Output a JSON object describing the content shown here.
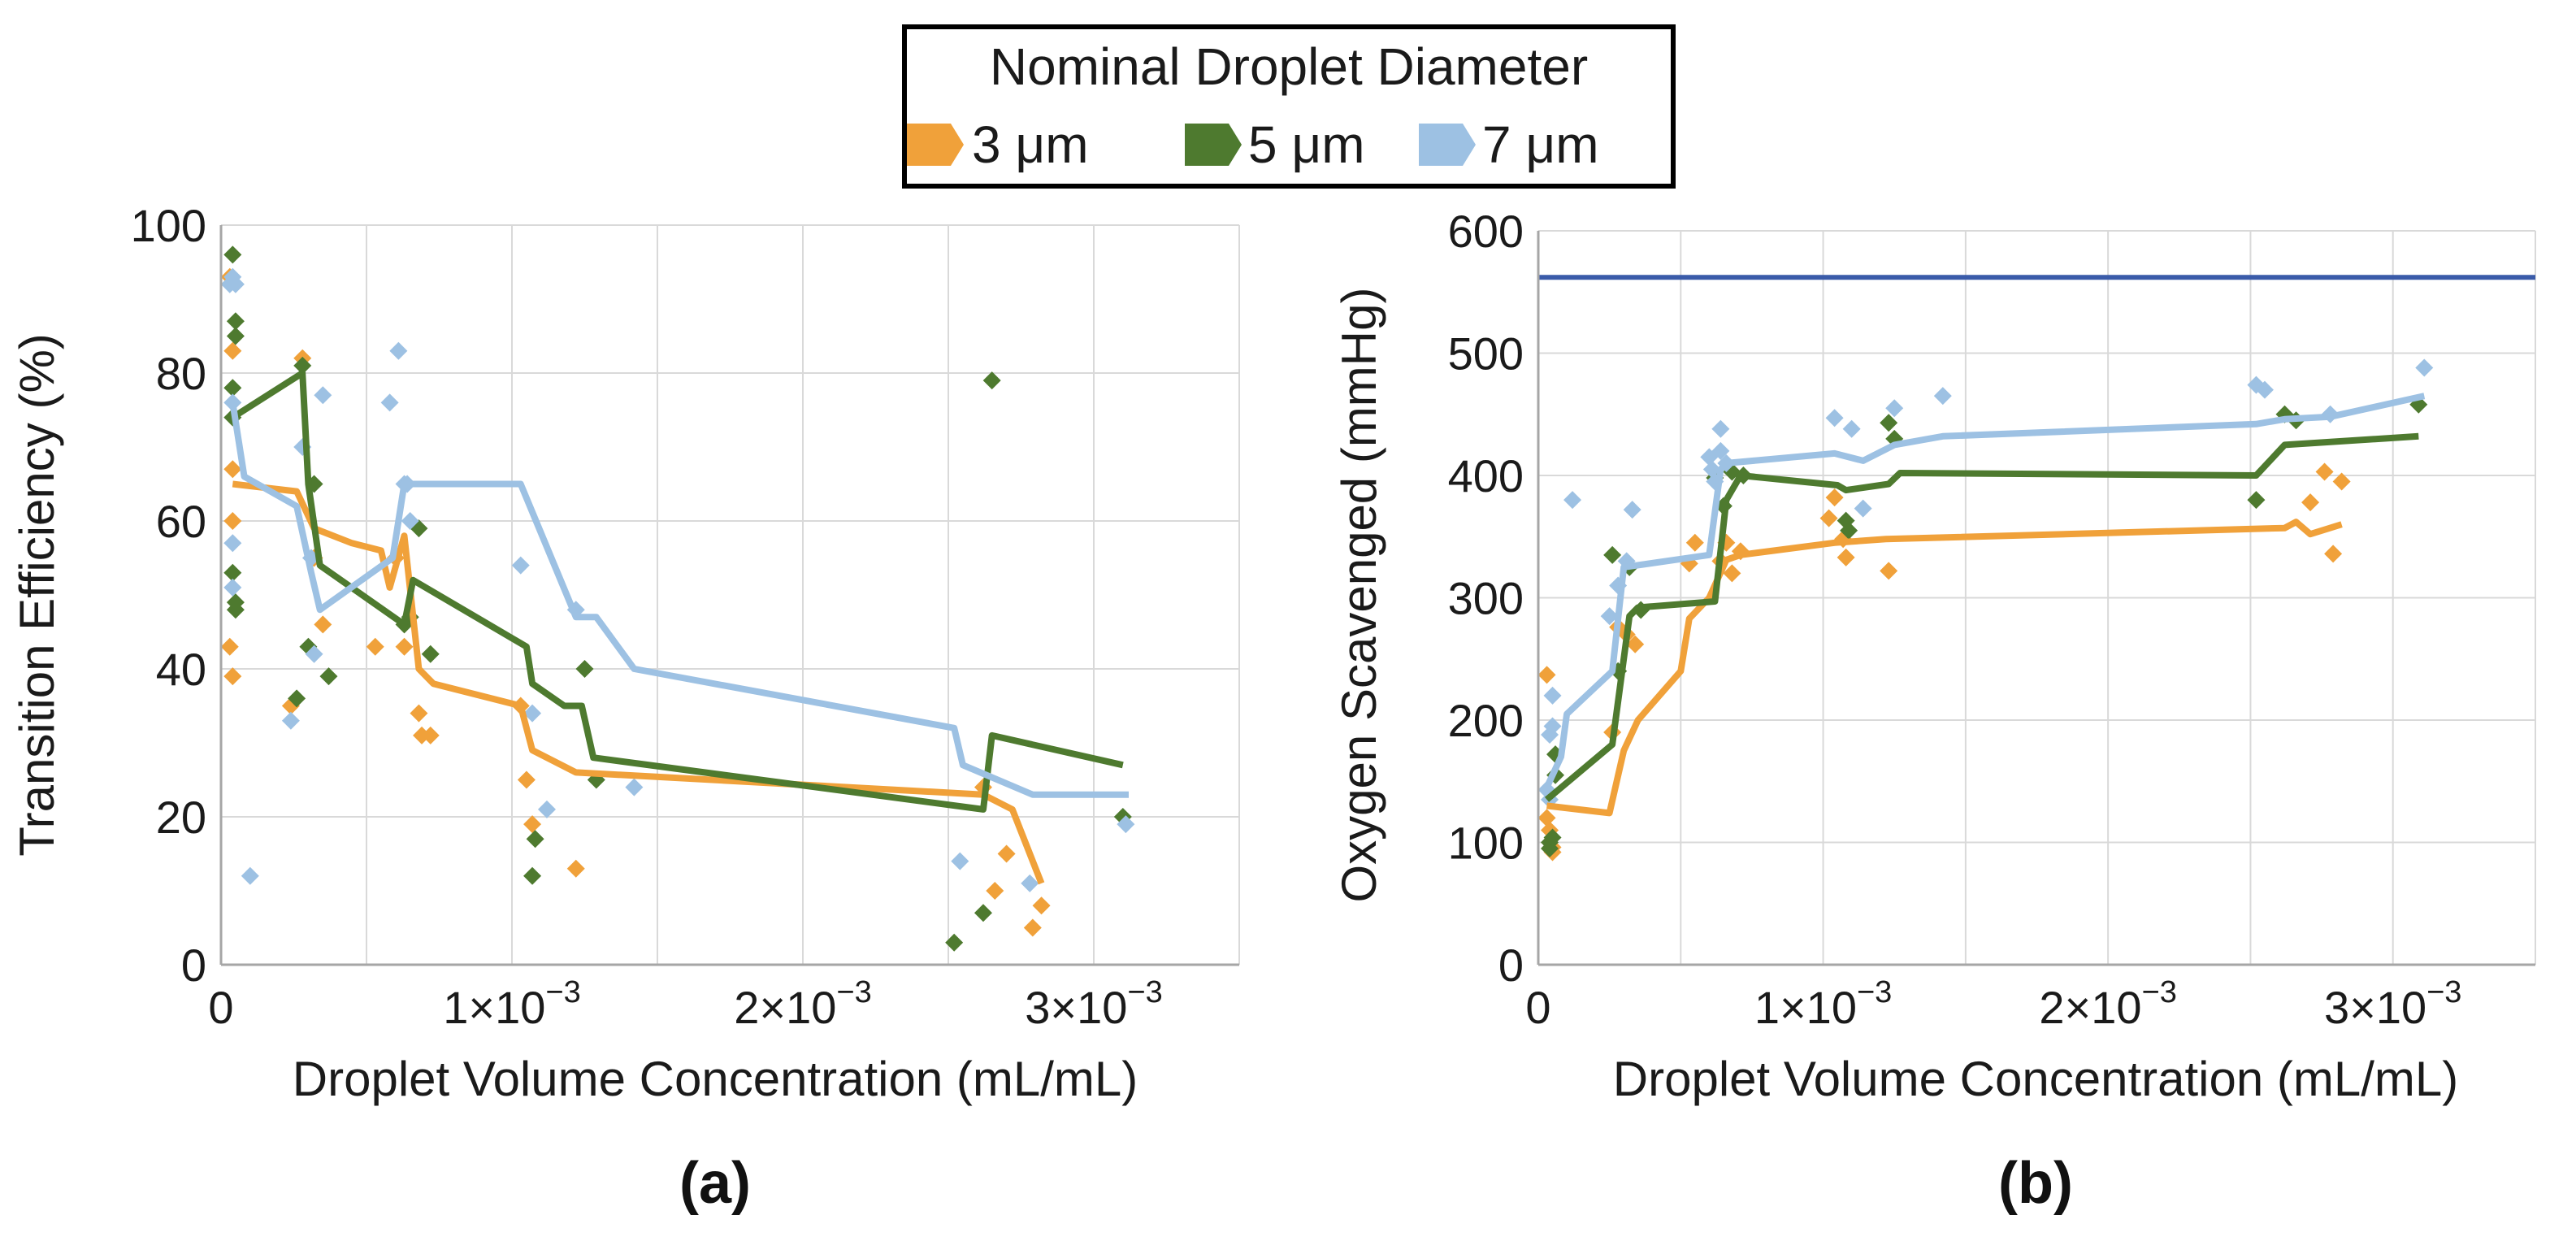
{
  "legend": {
    "title": "Nominal Droplet Diameter",
    "entries": [
      {
        "label": "3 μm",
        "color": "#f0a13a"
      },
      {
        "label": "5 μm",
        "color": "#4e7a2f"
      },
      {
        "label": "7 μm",
        "color": "#9dc1e3"
      }
    ]
  },
  "chart_data": [
    {
      "type": "scatter",
      "panel_label": "(a)",
      "title": "",
      "xlabel": "Droplet Volume Concentration (mL/mL)",
      "ylabel": "Transition Efficiency (%)",
      "xlim": [
        0,
        0.0035
      ],
      "ylim": [
        0,
        100
      ],
      "xticks": [
        {
          "value": 0,
          "mant": "0",
          "exp": ""
        },
        {
          "value": 0.001,
          "mant": "1×10",
          "exp": "−3"
        },
        {
          "value": 0.002,
          "mant": "2×10",
          "exp": "−3"
        },
        {
          "value": 0.003,
          "mant": "3×10",
          "exp": "−3"
        }
      ],
      "yticks": [
        {
          "value": 0,
          "label": "0"
        },
        {
          "value": 20,
          "label": "20"
        },
        {
          "value": 40,
          "label": "40"
        },
        {
          "value": 60,
          "label": "60"
        },
        {
          "value": 80,
          "label": "80"
        },
        {
          "value": 100,
          "label": "100"
        }
      ],
      "reference_lines": [],
      "series": [
        {
          "name": "3 μm",
          "color": "#f0a13a",
          "points": [
            [
              3e-05,
              93
            ],
            [
              4e-05,
              83
            ],
            [
              4e-05,
              67
            ],
            [
              4e-05,
              60
            ],
            [
              3e-05,
              43
            ],
            [
              4e-05,
              39
            ],
            [
              0.00024,
              35
            ],
            [
              0.00028,
              82
            ],
            [
              0.00032,
              55
            ],
            [
              0.00035,
              46
            ],
            [
              0.00053,
              43
            ],
            [
              0.0006,
              55
            ],
            [
              0.00063,
              43
            ],
            [
              0.00068,
              34
            ],
            [
              0.00069,
              31
            ],
            [
              0.00072,
              31
            ],
            [
              0.00103,
              35
            ],
            [
              0.00105,
              25
            ],
            [
              0.00107,
              19
            ],
            [
              0.00122,
              13
            ],
            [
              0.00262,
              24
            ],
            [
              0.00266,
              10
            ],
            [
              0.0027,
              15
            ],
            [
              0.00279,
              5
            ],
            [
              0.00282,
              8
            ]
          ],
          "line": [
            [
              4e-05,
              65
            ],
            [
              0.00026,
              64
            ],
            [
              0.00032,
              59
            ],
            [
              0.00045,
              57
            ],
            [
              0.00055,
              56
            ],
            [
              0.00058,
              51
            ],
            [
              0.00063,
              58
            ],
            [
              0.00068,
              40
            ],
            [
              0.00073,
              38
            ],
            [
              0.00103,
              35
            ],
            [
              0.00107,
              29
            ],
            [
              0.00122,
              26
            ],
            [
              0.00262,
              23
            ],
            [
              0.00272,
              21
            ],
            [
              0.00282,
              11
            ]
          ]
        },
        {
          "name": "5 μm",
          "color": "#4e7a2f",
          "points": [
            [
              4e-05,
              96
            ],
            [
              5e-05,
              87
            ],
            [
              5e-05,
              85
            ],
            [
              4e-05,
              78
            ],
            [
              4e-05,
              74
            ],
            [
              4e-05,
              53
            ],
            [
              5e-05,
              49
            ],
            [
              5e-05,
              48
            ],
            [
              0.00026,
              36
            ],
            [
              0.00028,
              81
            ],
            [
              0.0003,
              43
            ],
            [
              0.00032,
              65
            ],
            [
              0.00037,
              39
            ],
            [
              0.00063,
              46
            ],
            [
              0.00065,
              47
            ],
            [
              0.00068,
              59
            ],
            [
              0.00072,
              42
            ],
            [
              0.00107,
              12
            ],
            [
              0.00108,
              17
            ],
            [
              0.00125,
              40
            ],
            [
              0.00129,
              25
            ],
            [
              0.00252,
              3
            ],
            [
              0.00262,
              7
            ],
            [
              0.00265,
              79
            ],
            [
              0.0031,
              20
            ]
          ],
          "line": [
            [
              4e-05,
              74
            ],
            [
              0.00028,
              80
            ],
            [
              0.0003,
              65
            ],
            [
              0.00034,
              54
            ],
            [
              0.00063,
              46
            ],
            [
              0.00066,
              52
            ],
            [
              0.00105,
              43
            ],
            [
              0.00107,
              38
            ],
            [
              0.00118,
              35
            ],
            [
              0.00124,
              35
            ],
            [
              0.00128,
              28
            ],
            [
              0.00262,
              21
            ],
            [
              0.00265,
              31
            ],
            [
              0.0031,
              27
            ]
          ]
        },
        {
          "name": "7 μm",
          "color": "#9dc1e3",
          "points": [
            [
              3e-05,
              92
            ],
            [
              4e-05,
              93
            ],
            [
              5e-05,
              92
            ],
            [
              4e-05,
              76
            ],
            [
              4e-05,
              57
            ],
            [
              4e-05,
              51
            ],
            [
              0.0001,
              12
            ],
            [
              0.00024,
              33
            ],
            [
              0.00028,
              70
            ],
            [
              0.00031,
              55
            ],
            [
              0.00032,
              42
            ],
            [
              0.00035,
              77
            ],
            [
              0.00058,
              76
            ],
            [
              0.00061,
              83
            ],
            [
              0.00063,
              65
            ],
            [
              0.00064,
              65
            ],
            [
              0.00065,
              60
            ],
            [
              0.00103,
              54
            ],
            [
              0.00107,
              34
            ],
            [
              0.00112,
              21
            ],
            [
              0.00122,
              48
            ],
            [
              0.00142,
              24
            ],
            [
              0.00254,
              14
            ],
            [
              0.00278,
              11
            ],
            [
              0.00311,
              19
            ]
          ],
          "line": [
            [
              4e-05,
              76
            ],
            [
              8e-05,
              66
            ],
            [
              0.00026,
              62
            ],
            [
              0.00031,
              53
            ],
            [
              0.00034,
              48
            ],
            [
              0.00059,
              55
            ],
            [
              0.00063,
              65
            ],
            [
              0.00103,
              65
            ],
            [
              0.00122,
              47
            ],
            [
              0.00129,
              47
            ],
            [
              0.00142,
              40
            ],
            [
              0.00252,
              32
            ],
            [
              0.00255,
              27
            ],
            [
              0.00279,
              23
            ],
            [
              0.00312,
              23
            ]
          ]
        }
      ]
    },
    {
      "type": "scatter",
      "panel_label": "(b)",
      "title": "",
      "xlabel": "Droplet Volume Concentration (mL/mL)",
      "ylabel": "Oxygen Scavenged (mmHg)",
      "xlim": [
        0,
        0.0035
      ],
      "ylim": [
        0,
        600
      ],
      "xticks": [
        {
          "value": 0,
          "mant": "0",
          "exp": ""
        },
        {
          "value": 0.001,
          "mant": "1×10",
          "exp": "−3"
        },
        {
          "value": 0.002,
          "mant": "2×10",
          "exp": "−3"
        },
        {
          "value": 0.003,
          "mant": "3×10",
          "exp": "−3"
        }
      ],
      "yticks": [
        {
          "value": 0,
          "label": "0"
        },
        {
          "value": 100,
          "label": "100"
        },
        {
          "value": 200,
          "label": "200"
        },
        {
          "value": 300,
          "label": "300"
        },
        {
          "value": 400,
          "label": "400"
        },
        {
          "value": 500,
          "label": "500"
        },
        {
          "value": 600,
          "label": "600"
        }
      ],
      "reference_lines": [
        {
          "y": 562,
          "color": "#3a5ba9"
        }
      ],
      "series": [
        {
          "name": "3 μm",
          "color": "#f0a13a",
          "points": [
            [
              3e-05,
              237
            ],
            [
              3e-05,
              120
            ],
            [
              4e-05,
              110
            ],
            [
              5e-05,
              96
            ],
            [
              5e-05,
              92
            ],
            [
              0.00026,
              190
            ],
            [
              0.00028,
              276
            ],
            [
              0.00031,
              270
            ],
            [
              0.00034,
              262
            ],
            [
              0.00053,
              328
            ],
            [
              0.00055,
              345
            ],
            [
              0.00064,
              330
            ],
            [
              0.00066,
              345
            ],
            [
              0.00068,
              320
            ],
            [
              0.00071,
              338
            ],
            [
              0.00102,
              365
            ],
            [
              0.00104,
              382
            ],
            [
              0.00107,
              348
            ],
            [
              0.00108,
              333
            ],
            [
              0.00123,
              322
            ],
            [
              0.00271,
              378
            ],
            [
              0.00276,
              403
            ],
            [
              0.00279,
              336
            ],
            [
              0.00282,
              395
            ]
          ],
          "line": [
            [
              3e-05,
              130
            ],
            [
              0.00025,
              124
            ],
            [
              0.0003,
              175
            ],
            [
              0.00035,
              200
            ],
            [
              0.0005,
              240
            ],
            [
              0.00053,
              283
            ],
            [
              0.0006,
              300
            ],
            [
              0.00066,
              331
            ],
            [
              0.00071,
              335
            ],
            [
              0.00104,
              345
            ],
            [
              0.00122,
              348
            ],
            [
              0.00262,
              357
            ],
            [
              0.00266,
              362
            ],
            [
              0.00271,
              352
            ],
            [
              0.00282,
              360
            ]
          ]
        },
        {
          "name": "5 μm",
          "color": "#4e7a2f",
          "points": [
            [
              4e-05,
              100
            ],
            [
              4e-05,
              95
            ],
            [
              5e-05,
              104
            ],
            [
              6e-05,
              155
            ],
            [
              6e-05,
              172
            ],
            [
              0.00026,
              335
            ],
            [
              0.00028,
              240
            ],
            [
              0.00032,
              325
            ],
            [
              0.00036,
              290
            ],
            [
              0.00062,
              398
            ],
            [
              0.00065,
              375
            ],
            [
              0.00068,
              403
            ],
            [
              0.00072,
              400
            ],
            [
              0.00108,
              363
            ],
            [
              0.00109,
              355
            ],
            [
              0.00123,
              443
            ],
            [
              0.00125,
              430
            ],
            [
              0.00252,
              380
            ],
            [
              0.00262,
              450
            ],
            [
              0.00266,
              445
            ],
            [
              0.00309,
              458
            ]
          ],
          "line": [
            [
              3e-05,
              135
            ],
            [
              0.00026,
              180
            ],
            [
              0.00032,
              285
            ],
            [
              0.00035,
              292
            ],
            [
              0.00062,
              297
            ],
            [
              0.00066,
              380
            ],
            [
              0.00071,
              400
            ],
            [
              0.00105,
              392
            ],
            [
              0.00108,
              388
            ],
            [
              0.00123,
              393
            ],
            [
              0.00127,
              402
            ],
            [
              0.00252,
              400
            ],
            [
              0.00262,
              425
            ],
            [
              0.00309,
              432
            ]
          ]
        },
        {
          "name": "7 μm",
          "color": "#9dc1e3",
          "points": [
            [
              3e-05,
              143
            ],
            [
              4e-05,
              135
            ],
            [
              4e-05,
              188
            ],
            [
              5e-05,
              220
            ],
            [
              5e-05,
              195
            ],
            [
              0.00012,
              380
            ],
            [
              0.00025,
              285
            ],
            [
              0.00028,
              310
            ],
            [
              0.00031,
              330
            ],
            [
              0.00033,
              372
            ],
            [
              0.0006,
              415
            ],
            [
              0.00061,
              405
            ],
            [
              0.00062,
              395
            ],
            [
              0.00064,
              420
            ],
            [
              0.00064,
              438
            ],
            [
              0.00066,
              410
            ],
            [
              0.00104,
              447
            ],
            [
              0.0011,
              438
            ],
            [
              0.00114,
              373
            ],
            [
              0.00125,
              455
            ],
            [
              0.00142,
              465
            ],
            [
              0.00252,
              474
            ],
            [
              0.00255,
              470
            ],
            [
              0.00278,
              450
            ],
            [
              0.00311,
              488
            ]
          ],
          "line": [
            [
              3e-05,
              145
            ],
            [
              8e-05,
              170
            ],
            [
              0.0001,
              205
            ],
            [
              0.00026,
              240
            ],
            [
              0.0003,
              325
            ],
            [
              0.0006,
              335
            ],
            [
              0.00064,
              405
            ],
            [
              0.00066,
              410
            ],
            [
              0.00104,
              418
            ],
            [
              0.00114,
              412
            ],
            [
              0.00125,
              425
            ],
            [
              0.00142,
              432
            ],
            [
              0.00252,
              442
            ],
            [
              0.00262,
              446
            ],
            [
              0.00278,
              448
            ],
            [
              0.00311,
              465
            ]
          ]
        }
      ]
    }
  ]
}
